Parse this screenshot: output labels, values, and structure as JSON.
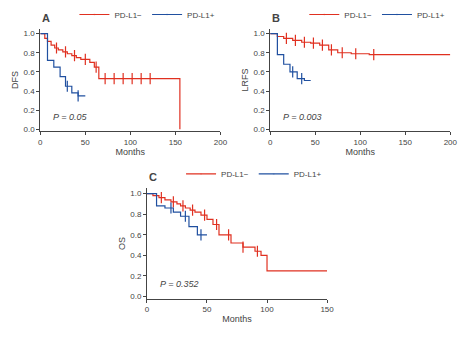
{
  "chart_data": [
    {
      "type": "step",
      "title": "A",
      "x_label": "Months",
      "y_label": "DFS",
      "annotations": [
        "P = 0.05"
      ],
      "xlim": [
        0,
        200
      ],
      "ylim": [
        -0.02,
        1.05
      ],
      "xticks": [
        0,
        50,
        100,
        150,
        200
      ],
      "yticks": [
        {
          "value": 0.0,
          "label": "0.0"
        },
        0.2,
        0.4,
        0.6,
        0.8,
        {
          "value": 1.0,
          "label": "1.0"
        }
      ],
      "grid": false,
      "legend": "upper right",
      "series": [
        {
          "name": "PD-L1−",
          "color": "#e03020",
          "x": [
            0,
            5,
            8,
            12,
            16,
            20,
            25,
            30,
            35,
            40,
            45,
            55,
            60,
            65,
            150,
            155
          ],
          "values": [
            1.0,
            0.95,
            0.92,
            0.88,
            0.85,
            0.83,
            0.81,
            0.79,
            0.77,
            0.75,
            0.73,
            0.7,
            0.65,
            0.53,
            0.53,
            0.0
          ],
          "censored_x": [
            18,
            28,
            38,
            50,
            62,
            72,
            82,
            92,
            102,
            112,
            122
          ],
          "censored_y": [
            0.85,
            0.81,
            0.77,
            0.73,
            0.65,
            0.53,
            0.53,
            0.53,
            0.53,
            0.53,
            0.53
          ]
        },
        {
          "name": "PD-L1+",
          "color": "#2050a0",
          "x": [
            0,
            8,
            15,
            22,
            28,
            35,
            42,
            50
          ],
          "values": [
            1.0,
            0.72,
            0.65,
            0.55,
            0.45,
            0.38,
            0.35,
            0.35
          ],
          "censored_x": [
            30,
            42
          ],
          "censored_y": [
            0.45,
            0.35
          ]
        }
      ]
    },
    {
      "type": "step",
      "title": "B",
      "x_label": "Months",
      "y_label": "LRFS",
      "annotations": [
        "P = 0.003"
      ],
      "xlim": [
        0,
        200
      ],
      "ylim": [
        -0.02,
        1.05
      ],
      "xticks": [
        0,
        50,
        100,
        150,
        200
      ],
      "yticks": [
        {
          "value": 0.0,
          "label": "0.0"
        },
        0.2,
        0.4,
        0.6,
        0.8,
        {
          "value": 1.0,
          "label": "1.0"
        }
      ],
      "grid": false,
      "legend": "upper right",
      "series": [
        {
          "name": "PD-L1−",
          "color": "#e03020",
          "x": [
            0,
            8,
            15,
            25,
            35,
            45,
            55,
            65,
            75,
            90,
            110,
            150,
            200
          ],
          "values": [
            1.0,
            0.97,
            0.95,
            0.93,
            0.91,
            0.9,
            0.88,
            0.83,
            0.8,
            0.79,
            0.78,
            0.78,
            0.78
          ],
          "censored_x": [
            18,
            28,
            38,
            48,
            58,
            68,
            80,
            95,
            115
          ],
          "censored_y": [
            0.95,
            0.93,
            0.91,
            0.9,
            0.88,
            0.83,
            0.8,
            0.79,
            0.78
          ]
        },
        {
          "name": "PD-L1+",
          "color": "#2050a0",
          "x": [
            0,
            8,
            15,
            22,
            30,
            38,
            45
          ],
          "values": [
            1.0,
            0.78,
            0.68,
            0.6,
            0.53,
            0.51,
            0.51
          ],
          "censored_x": [
            25,
            35
          ],
          "censored_y": [
            0.6,
            0.53
          ]
        }
      ]
    },
    {
      "type": "step",
      "title": "C",
      "x_label": "Months",
      "y_label": "OS",
      "annotations": [
        "P = 0.352"
      ],
      "xlim": [
        0,
        150
      ],
      "ylim": [
        -0.02,
        1.05
      ],
      "xticks": [
        0,
        50,
        100,
        150
      ],
      "yticks": [
        {
          "value": 0.0,
          "label": "0.0"
        },
        0.2,
        0.4,
        0.6,
        0.8,
        {
          "value": 1.0,
          "label": "1.0"
        }
      ],
      "grid": false,
      "legend": "upper right",
      "series": [
        {
          "name": "PD-L1−",
          "color": "#e03020",
          "x": [
            0,
            5,
            10,
            15,
            20,
            25,
            28,
            32,
            36,
            40,
            45,
            50,
            55,
            60,
            70,
            80,
            90,
            95,
            100,
            150
          ],
          "values": [
            1.0,
            0.98,
            0.96,
            0.94,
            0.92,
            0.9,
            0.88,
            0.86,
            0.84,
            0.82,
            0.79,
            0.75,
            0.7,
            0.6,
            0.52,
            0.48,
            0.44,
            0.4,
            0.25,
            0.25
          ],
          "censored_x": [
            12,
            22,
            30,
            38,
            48,
            58,
            68,
            80,
            92
          ],
          "censored_y": [
            0.96,
            0.92,
            0.88,
            0.84,
            0.79,
            0.7,
            0.6,
            0.48,
            0.44
          ]
        },
        {
          "name": "PD-L1+",
          "color": "#2050a0",
          "x": [
            0,
            8,
            15,
            22,
            28,
            35,
            42,
            50
          ],
          "values": [
            1.0,
            0.88,
            0.86,
            0.82,
            0.78,
            0.68,
            0.6,
            0.6
          ],
          "censored_x": [
            20,
            32,
            45
          ],
          "censored_y": [
            0.86,
            0.78,
            0.6
          ]
        }
      ]
    }
  ]
}
